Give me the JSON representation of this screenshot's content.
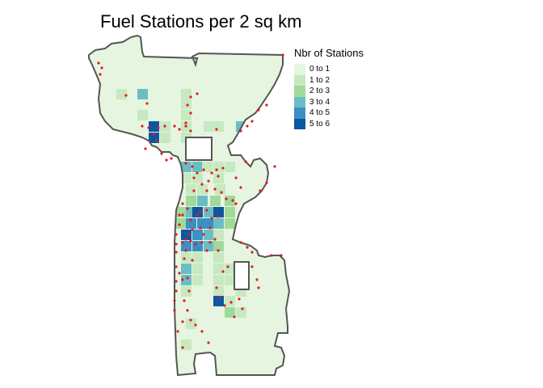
{
  "title": "Fuel Stations per 2 sq km",
  "legend": {
    "title": "Nbr of Stations",
    "items": [
      {
        "label": "0 to 1",
        "color": "#e5f5e0"
      },
      {
        "label": "1 to 2",
        "color": "#c7e9c0"
      },
      {
        "label": "2 to 3",
        "color": "#a1d99b"
      },
      {
        "label": "3 to 4",
        "color": "#6bbdc4"
      },
      {
        "label": "4 to 5",
        "color": "#3c8fc4"
      },
      {
        "label": "5 to 6",
        "color": "#0d57a1"
      }
    ]
  },
  "colors": {
    "boundary_fill": "#e5f5e0",
    "boundary_stroke": "#555555",
    "station_point": "#e41a1c"
  }
}
